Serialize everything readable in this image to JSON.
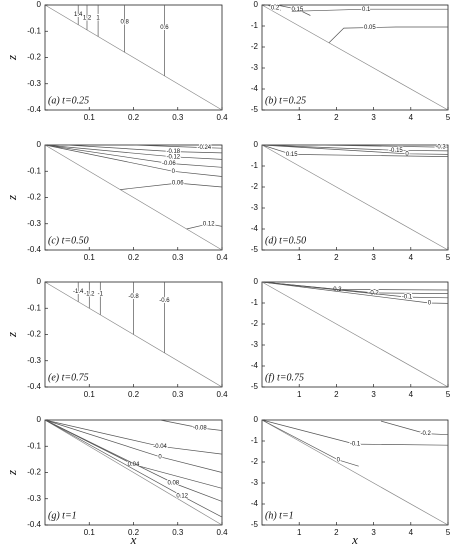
{
  "chart_data": [
    {
      "type": "contour",
      "label": "(a) t=0.25",
      "ylabel": "z",
      "xlim": [
        0,
        0.4
      ],
      "ylim": [
        -0.4,
        0
      ],
      "xticks": [
        0.1,
        0.2,
        0.3,
        0.4
      ],
      "yticks": [
        0,
        -0.1,
        -0.2,
        -0.3,
        -0.4
      ],
      "contours": [
        {
          "level": 1.4,
          "x": [
            0.075,
            0.075,
            0.075
          ],
          "y": [
            0,
            -0.035,
            -0.075
          ]
        },
        {
          "level": 1.2,
          "x": [
            0.095,
            0.095,
            0.095
          ],
          "y": [
            0,
            -0.05,
            -0.095
          ]
        },
        {
          "level": 1,
          "x": [
            0.12,
            0.12,
            0.12
          ],
          "y": [
            0,
            -0.05,
            -0.12
          ]
        },
        {
          "level": 0.8,
          "x": [
            0.18,
            0.18,
            0.18
          ],
          "y": [
            0,
            -0.065,
            -0.18
          ]
        },
        {
          "level": 0.6,
          "x": [
            0.27,
            0.27,
            0.27
          ],
          "y": [
            0,
            -0.085,
            -0.27
          ]
        }
      ]
    },
    {
      "type": "contour",
      "label": "(b) t=0.25",
      "xlim": [
        0,
        5
      ],
      "ylim": [
        -5,
        0
      ],
      "xticks": [
        1,
        2,
        3,
        4,
        5
      ],
      "yticks": [
        0,
        -1,
        -2,
        -3,
        -4,
        -5
      ],
      "contours": [
        {
          "level": 0.2,
          "x": [
            0.15,
            0.35,
            0.5
          ],
          "y": [
            0,
            -0.15,
            -0.25
          ]
        },
        {
          "level": 0.15,
          "x": [
            0.4,
            0.95,
            1.3
          ],
          "y": [
            0,
            -0.2,
            -0.5
          ]
        },
        {
          "level": 0.1,
          "x": [
            0.8,
            2.8,
            5
          ],
          "y": [
            -0.3,
            -0.2,
            -0.2
          ]
        },
        {
          "level": 0.05,
          "x": [
            1.8,
            2.2,
            3.6,
            5
          ],
          "y": [
            -1.8,
            -1.1,
            -1.05,
            -1.05
          ]
        }
      ]
    },
    {
      "type": "contour",
      "label": "(c) t=0.50",
      "ylabel": "z",
      "xlim": [
        0,
        0.4
      ],
      "ylim": [
        -0.4,
        0
      ],
      "xticks": [
        0.1,
        0.2,
        0.3,
        0.4
      ],
      "yticks": [
        0,
        -0.1,
        -0.2,
        -0.3,
        -0.4
      ],
      "contours": [
        {
          "level": -0.24,
          "x": [
            0.2,
            0.36,
            0.4
          ],
          "y": [
            0,
            -0.01,
            -0.012
          ]
        },
        {
          "level": -0.18,
          "x": [
            0.05,
            0.29,
            0.4
          ],
          "y": [
            0,
            -0.025,
            -0.03
          ]
        },
        {
          "level": -0.12,
          "x": [
            0,
            0.29,
            0.4
          ],
          "y": [
            0,
            -0.045,
            -0.055
          ]
        },
        {
          "level": -0.06,
          "x": [
            0,
            0.28,
            0.4
          ],
          "y": [
            0,
            -0.07,
            -0.085
          ]
        },
        {
          "level": 0,
          "x": [
            0,
            0.29,
            0.4
          ],
          "y": [
            0,
            -0.1,
            -0.12
          ]
        },
        {
          "level": 0.06,
          "x": [
            0.17,
            0.3,
            0.4
          ],
          "y": [
            -0.17,
            -0.145,
            -0.16
          ]
        },
        {
          "level": 0.12,
          "x": [
            0.32,
            0.37,
            0.4
          ],
          "y": [
            -0.32,
            -0.3,
            -0.31
          ]
        }
      ]
    },
    {
      "type": "contour",
      "label": "(d) t=0.50",
      "xlim": [
        0,
        5
      ],
      "ylim": [
        -5,
        0
      ],
      "xticks": [
        1,
        2,
        3,
        4,
        5
      ],
      "yticks": [
        0,
        -1,
        -2,
        -3,
        -4,
        -5
      ],
      "contours": [
        {
          "level": -0.3,
          "x": [
            1.5,
            4.8,
            5
          ],
          "y": [
            0,
            -0.1,
            -0.1
          ]
        },
        {
          "level": -0.15,
          "x": [
            0,
            3.6,
            5
          ],
          "y": [
            0,
            -0.25,
            -0.28
          ]
        },
        {
          "level": 0,
          "x": [
            0,
            3.9,
            5
          ],
          "y": [
            0,
            -0.42,
            -0.45
          ]
        },
        {
          "level": 0.15,
          "x": [
            0,
            0.8,
            5
          ],
          "y": [
            0,
            -0.45,
            -0.55
          ]
        }
      ]
    },
    {
      "type": "contour",
      "label": "(e) t=0.75",
      "ylabel": "z",
      "xlim": [
        0,
        0.4
      ],
      "ylim": [
        -0.4,
        0
      ],
      "xticks": [
        0.1,
        0.2,
        0.3,
        0.4
      ],
      "yticks": [
        0,
        -0.1,
        -0.2,
        -0.3,
        -0.4
      ],
      "contours": [
        {
          "level": -1.4,
          "x": [
            0.075,
            0.075,
            0.075
          ],
          "y": [
            0,
            -0.035,
            -0.075
          ]
        },
        {
          "level": -1.2,
          "x": [
            0.1,
            0.1,
            0.1
          ],
          "y": [
            0,
            -0.045,
            -0.1
          ]
        },
        {
          "level": -1,
          "x": [
            0.125,
            0.125,
            0.125
          ],
          "y": [
            0,
            -0.045,
            -0.125
          ]
        },
        {
          "level": -0.8,
          "x": [
            0.2,
            0.2,
            0.2
          ],
          "y": [
            0,
            -0.055,
            -0.2
          ]
        },
        {
          "level": -0.6,
          "x": [
            0.27,
            0.27,
            0.27
          ],
          "y": [
            0,
            -0.07,
            -0.27
          ]
        }
      ]
    },
    {
      "type": "contour",
      "label": "(f) t=0.75",
      "xlim": [
        0,
        5
      ],
      "ylim": [
        -5,
        0
      ],
      "xticks": [
        1,
        2,
        3,
        4,
        5
      ],
      "yticks": [
        0,
        -1,
        -2,
        -3,
        -4,
        -5
      ],
      "contours": [
        {
          "level": -0.3,
          "x": [
            0,
            2,
            5
          ],
          "y": [
            0,
            -0.35,
            -0.38
          ]
        },
        {
          "level": -0.2,
          "x": [
            0,
            3,
            5
          ],
          "y": [
            0,
            -0.52,
            -0.55
          ]
        },
        {
          "level": -0.1,
          "x": [
            0,
            3.9,
            5
          ],
          "y": [
            0,
            -0.72,
            -0.75
          ]
        },
        {
          "level": 0,
          "x": [
            0,
            4.5,
            5
          ],
          "y": [
            0,
            -1,
            -1.02
          ]
        }
      ]
    },
    {
      "type": "contour",
      "label": "(g) t=1",
      "ylabel": "z",
      "xlabel": "x",
      "xlim": [
        0,
        0.4
      ],
      "ylim": [
        -0.4,
        0
      ],
      "xticks": [
        0.1,
        0.2,
        0.3,
        0.4
      ],
      "yticks": [
        0,
        -0.1,
        -0.2,
        -0.3,
        -0.4
      ],
      "contours": [
        {
          "level": -0.08,
          "x": [
            0.26,
            0.35,
            0.4
          ],
          "y": [
            0,
            -0.03,
            -0.04
          ]
        },
        {
          "level": -0.04,
          "x": [
            0,
            0.26,
            0.4
          ],
          "y": [
            0,
            -0.1,
            -0.13
          ]
        },
        {
          "level": 0,
          "x": [
            0,
            0.26,
            0.4
          ],
          "y": [
            0,
            -0.14,
            -0.2
          ]
        },
        {
          "level": 0.04,
          "x": [
            0,
            0.2,
            0.4
          ],
          "y": [
            0,
            -0.17,
            -0.26
          ]
        },
        {
          "level": 0.08,
          "x": [
            0,
            0.29,
            0.4
          ],
          "y": [
            0,
            -0.24,
            -0.31
          ]
        },
        {
          "level": 0.12,
          "x": [
            0,
            0.31,
            0.4
          ],
          "y": [
            0,
            -0.29,
            -0.37
          ]
        }
      ]
    },
    {
      "type": "contour",
      "label": "(h) t=1",
      "xlabel": "x",
      "xlim": [
        0,
        5
      ],
      "ylim": [
        -5,
        0
      ],
      "xticks": [
        1,
        2,
        3,
        4,
        5
      ],
      "yticks": [
        0,
        -1,
        -2,
        -3,
        -4,
        -5
      ],
      "contours": [
        {
          "level": -0.2,
          "x": [
            3.2,
            4.4,
            5
          ],
          "y": [
            -0.05,
            -0.65,
            -0.7
          ]
        },
        {
          "level": -0.1,
          "x": [
            0,
            2.5,
            5
          ],
          "y": [
            0,
            -1.15,
            -1.2
          ]
        },
        {
          "level": 0,
          "x": [
            0,
            2.05,
            2.6
          ],
          "y": [
            0,
            -1.9,
            -2.2
          ]
        }
      ]
    }
  ]
}
